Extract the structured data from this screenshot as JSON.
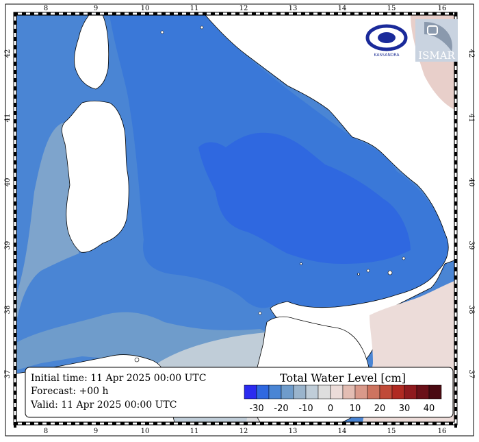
{
  "map": {
    "lon_ticks": [
      "8",
      "9",
      "10",
      "11",
      "12",
      "13",
      "14",
      "15",
      "16"
    ],
    "lat_ticks": [
      "42",
      "41",
      "40",
      "39",
      "38",
      "37"
    ]
  },
  "info": {
    "initial_time": "Initial time: 11 Apr 2025 00:00 UTC",
    "forecast": "Forecast: +00 h",
    "valid": "Valid: 11 Apr 2025 00:00 UTC"
  },
  "colorbar": {
    "title": "Total Water Level [cm]",
    "labels": [
      "-30",
      "-20",
      "-10",
      "0",
      "10",
      "20",
      "30",
      "40"
    ],
    "colors": [
      "#2b2bf0",
      "#2f68e0",
      "#4a85d4",
      "#6f9ccb",
      "#9ab4cc",
      "#c0cdd8",
      "#dedede",
      "#ecdcd9",
      "#e3bdb3",
      "#d9998a",
      "#cd7460",
      "#c04a38",
      "#b02a22",
      "#8f1a1e",
      "#6a1018",
      "#4a0a12"
    ]
  },
  "logos": {
    "ismar_text": "ISMAR",
    "kassandra_text": "KASSANDRA"
  }
}
